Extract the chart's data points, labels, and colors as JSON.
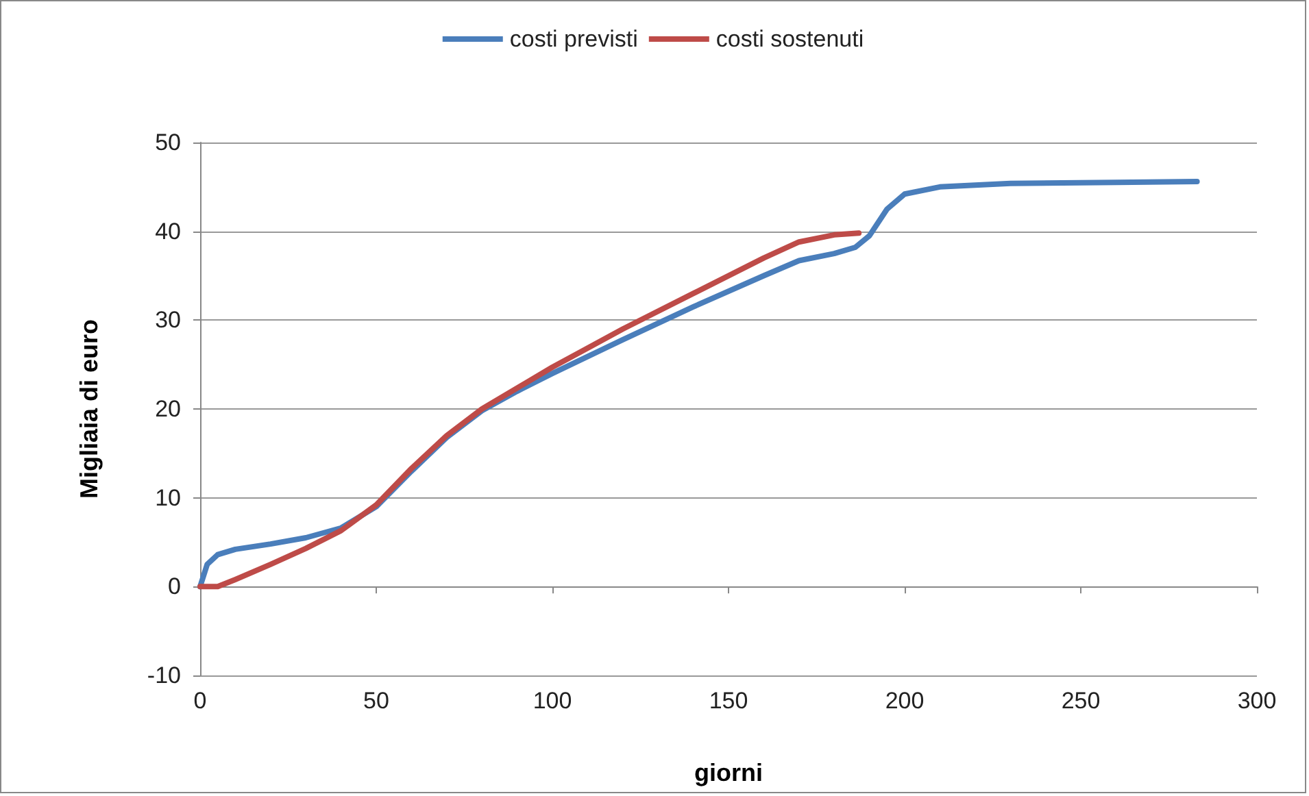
{
  "chart_data": {
    "type": "line",
    "xlabel": "giorni",
    "ylabel": "Migliaia di euro",
    "xlim": [
      0,
      300
    ],
    "xticks": [
      0,
      50,
      100,
      150,
      200,
      250,
      300
    ],
    "ylim": [
      -10,
      50
    ],
    "yticks": [
      -10,
      0,
      10,
      20,
      30,
      40,
      50
    ],
    "grid": "y",
    "legend": "top",
    "marker": "none",
    "line_style": "solid",
    "series": [
      {
        "name": "costi previsti",
        "color": "#4a7ebb",
        "x": [
          0,
          2,
          5,
          10,
          20,
          30,
          40,
          50,
          60,
          70,
          80,
          90,
          100,
          120,
          140,
          160,
          170,
          180,
          186,
          190,
          195,
          200,
          210,
          230,
          260,
          283
        ],
        "values": [
          0,
          2.5,
          3.6,
          4.2,
          4.8,
          5.5,
          6.6,
          9,
          13,
          16.8,
          19.8,
          22,
          24,
          27.8,
          31.5,
          35,
          36.7,
          37.5,
          38.2,
          39.5,
          42.5,
          44.2,
          45,
          45.4,
          45.5,
          45.6
        ]
      },
      {
        "name": "costi sostenuti",
        "color": "#be4b48",
        "x": [
          0,
          5,
          10,
          20,
          30,
          40,
          50,
          60,
          70,
          80,
          100,
          120,
          140,
          160,
          170,
          180,
          187
        ],
        "values": [
          0,
          0,
          0.8,
          2.5,
          4.3,
          6.3,
          9.2,
          13.3,
          17,
          20,
          24.7,
          29,
          33,
          37,
          38.8,
          39.6,
          39.8
        ]
      }
    ]
  }
}
